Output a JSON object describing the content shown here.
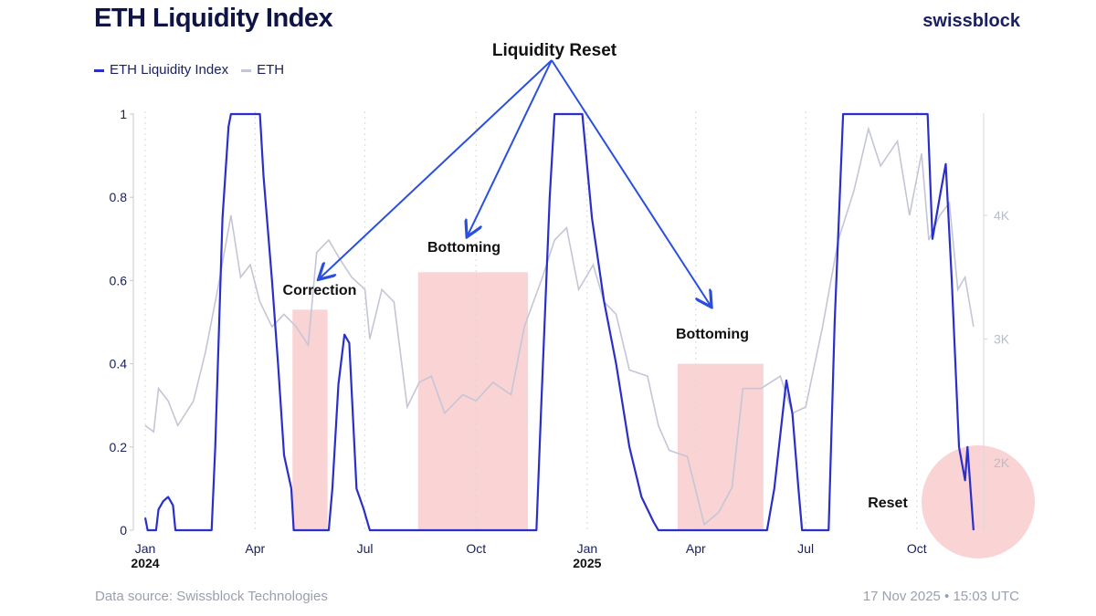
{
  "header": {
    "title": "ETH Liquidity Index",
    "brand": "swissblock"
  },
  "footer": {
    "source": "Data source: Swissblock Technologies",
    "timestamp": "17 Nov 2025 • 15:03 UTC"
  },
  "chart_data": {
    "type": "line",
    "title": "ETH Liquidity Index",
    "legend": {
      "placement": "top-left",
      "entries": [
        "ETH Liquidity Index",
        "ETH"
      ]
    },
    "colors": {
      "index": "#2a2fc9",
      "eth": "#c4c6d6",
      "highlight": "#f9c9c9"
    },
    "x_ticks": [
      {
        "date": "2024-01-01",
        "label": "Jan",
        "year": "2024"
      },
      {
        "date": "2024-04-01",
        "label": "Apr"
      },
      {
        "date": "2024-07-01",
        "label": "Jul"
      },
      {
        "date": "2024-10-01",
        "label": "Oct"
      },
      {
        "date": "2025-01-01",
        "label": "Jan",
        "year": "2025"
      },
      {
        "date": "2025-04-01",
        "label": "Apr"
      },
      {
        "date": "2025-07-01",
        "label": "Jul"
      },
      {
        "date": "2025-10-01",
        "label": "Oct"
      }
    ],
    "y_left": {
      "range": [
        0,
        1
      ],
      "ticks": [
        {
          "v": 0,
          "label": "0"
        },
        {
          "v": 0.2,
          "label": "0.2"
        },
        {
          "v": 0.4,
          "label": "0.4"
        },
        {
          "v": 0.6,
          "label": "0.6"
        },
        {
          "v": 0.8,
          "label": "0.8"
        },
        {
          "v": 1,
          "label": "1"
        }
      ]
    },
    "y_right": {
      "ticks": [
        {
          "v": 2000,
          "label": "2K"
        },
        {
          "v": 3000,
          "label": "3K"
        },
        {
          "v": 4000,
          "label": "4K"
        }
      ]
    },
    "series": [
      {
        "name": "ETH Liquidity Index",
        "axis": "left",
        "points": [
          [
            "2024-01-01",
            0.03
          ],
          [
            "2024-01-03",
            0
          ],
          [
            "2024-01-10",
            0
          ],
          [
            "2024-01-12",
            0.05
          ],
          [
            "2024-01-16",
            0.07
          ],
          [
            "2024-01-20",
            0.08
          ],
          [
            "2024-01-24",
            0.06
          ],
          [
            "2024-01-26",
            0
          ],
          [
            "2024-02-25",
            0
          ],
          [
            "2024-02-28",
            0.2
          ],
          [
            "2024-03-05",
            0.75
          ],
          [
            "2024-03-10",
            0.97
          ],
          [
            "2024-03-12",
            1
          ],
          [
            "2024-04-05",
            1
          ],
          [
            "2024-04-08",
            0.85
          ],
          [
            "2024-04-15",
            0.6
          ],
          [
            "2024-04-20",
            0.4
          ],
          [
            "2024-04-25",
            0.18
          ],
          [
            "2024-05-01",
            0.1
          ],
          [
            "2024-05-03",
            0
          ],
          [
            "2024-06-01",
            0
          ],
          [
            "2024-06-04",
            0.1
          ],
          [
            "2024-06-09",
            0.35
          ],
          [
            "2024-06-14",
            0.47
          ],
          [
            "2024-06-18",
            0.45
          ],
          [
            "2024-06-24",
            0.1
          ],
          [
            "2024-06-30",
            0.05
          ],
          [
            "2024-07-05",
            0
          ],
          [
            "2024-11-20",
            0
          ],
          [
            "2024-11-24",
            0.3
          ],
          [
            "2024-12-01",
            0.8
          ],
          [
            "2024-12-05",
            1
          ],
          [
            "2024-12-28",
            1
          ],
          [
            "2025-01-05",
            0.75
          ],
          [
            "2025-01-15",
            0.55
          ],
          [
            "2025-01-25",
            0.4
          ],
          [
            "2025-02-05",
            0.2
          ],
          [
            "2025-02-15",
            0.08
          ],
          [
            "2025-02-25",
            0.02
          ],
          [
            "2025-03-01",
            0
          ],
          [
            "2025-05-30",
            0
          ],
          [
            "2025-06-05",
            0.1
          ],
          [
            "2025-06-15",
            0.36
          ],
          [
            "2025-06-20",
            0.28
          ],
          [
            "2025-06-25",
            0.1
          ],
          [
            "2025-06-28",
            0
          ],
          [
            "2025-07-20",
            0
          ],
          [
            "2025-07-25",
            0.5
          ],
          [
            "2025-08-01",
            1
          ],
          [
            "2025-10-10",
            1
          ],
          [
            "2025-10-14",
            0.7
          ],
          [
            "2025-10-20",
            0.8
          ],
          [
            "2025-10-25",
            0.88
          ],
          [
            "2025-10-30",
            0.6
          ],
          [
            "2025-11-05",
            0.2
          ],
          [
            "2025-11-10",
            0.12
          ],
          [
            "2025-11-12",
            0.2
          ],
          [
            "2025-11-17",
            0
          ]
        ]
      },
      {
        "name": "ETH",
        "axis": "right",
        "points": [
          [
            "2024-01-01",
            2300
          ],
          [
            "2024-01-08",
            2250
          ],
          [
            "2024-01-12",
            2600
          ],
          [
            "2024-01-20",
            2500
          ],
          [
            "2024-01-28",
            2300
          ],
          [
            "2024-02-10",
            2500
          ],
          [
            "2024-02-20",
            2900
          ],
          [
            "2024-03-01",
            3400
          ],
          [
            "2024-03-12",
            4000
          ],
          [
            "2024-03-20",
            3500
          ],
          [
            "2024-03-28",
            3600
          ],
          [
            "2024-04-05",
            3300
          ],
          [
            "2024-04-15",
            3100
          ],
          [
            "2024-04-25",
            3200
          ],
          [
            "2024-05-05",
            3100
          ],
          [
            "2024-05-15",
            2950
          ],
          [
            "2024-05-22",
            3700
          ],
          [
            "2024-06-01",
            3800
          ],
          [
            "2024-06-10",
            3650
          ],
          [
            "2024-06-20",
            3500
          ],
          [
            "2024-07-01",
            3400
          ],
          [
            "2024-07-05",
            3000
          ],
          [
            "2024-07-15",
            3400
          ],
          [
            "2024-07-25",
            3300
          ],
          [
            "2024-08-05",
            2450
          ],
          [
            "2024-08-15",
            2650
          ],
          [
            "2024-08-25",
            2700
          ],
          [
            "2024-09-05",
            2400
          ],
          [
            "2024-09-20",
            2550
          ],
          [
            "2024-10-01",
            2500
          ],
          [
            "2024-10-15",
            2650
          ],
          [
            "2024-10-30",
            2550
          ],
          [
            "2024-11-10",
            3100
          ],
          [
            "2024-11-25",
            3500
          ],
          [
            "2024-12-05",
            3800
          ],
          [
            "2024-12-15",
            3900
          ],
          [
            "2024-12-25",
            3400
          ],
          [
            "2025-01-06",
            3600
          ],
          [
            "2025-01-15",
            3300
          ],
          [
            "2025-01-25",
            3200
          ],
          [
            "2025-02-05",
            2750
          ],
          [
            "2025-02-20",
            2700
          ],
          [
            "2025-03-01",
            2300
          ],
          [
            "2025-03-10",
            2100
          ],
          [
            "2025-03-25",
            2050
          ],
          [
            "2025-04-08",
            1500
          ],
          [
            "2025-04-20",
            1600
          ],
          [
            "2025-05-01",
            1800
          ],
          [
            "2025-05-10",
            2600
          ],
          [
            "2025-05-25",
            2600
          ],
          [
            "2025-06-10",
            2700
          ],
          [
            "2025-06-20",
            2400
          ],
          [
            "2025-07-01",
            2450
          ],
          [
            "2025-07-15",
            3100
          ],
          [
            "2025-07-28",
            3800
          ],
          [
            "2025-08-10",
            4200
          ],
          [
            "2025-08-22",
            4700
          ],
          [
            "2025-09-01",
            4400
          ],
          [
            "2025-09-15",
            4600
          ],
          [
            "2025-09-25",
            4000
          ],
          [
            "2025-10-05",
            4500
          ],
          [
            "2025-10-11",
            3800
          ],
          [
            "2025-10-20",
            4000
          ],
          [
            "2025-10-28",
            4100
          ],
          [
            "2025-11-04",
            3400
          ],
          [
            "2025-11-10",
            3500
          ],
          [
            "2025-11-17",
            3100
          ]
        ]
      }
    ],
    "annotations": {
      "reset_title": "Liquidity Reset",
      "correction": "Correction",
      "bottoming_1": "Bottoming",
      "bottoming_2": "Bottoming",
      "reset": "Reset"
    },
    "highlight_ranges": [
      {
        "start": "2024-05-02",
        "end": "2024-05-31",
        "top": 0.53
      },
      {
        "start": "2024-08-14",
        "end": "2024-11-13",
        "top": 0.62
      },
      {
        "start": "2025-03-17",
        "end": "2025-05-27",
        "top": 0.4
      }
    ]
  }
}
